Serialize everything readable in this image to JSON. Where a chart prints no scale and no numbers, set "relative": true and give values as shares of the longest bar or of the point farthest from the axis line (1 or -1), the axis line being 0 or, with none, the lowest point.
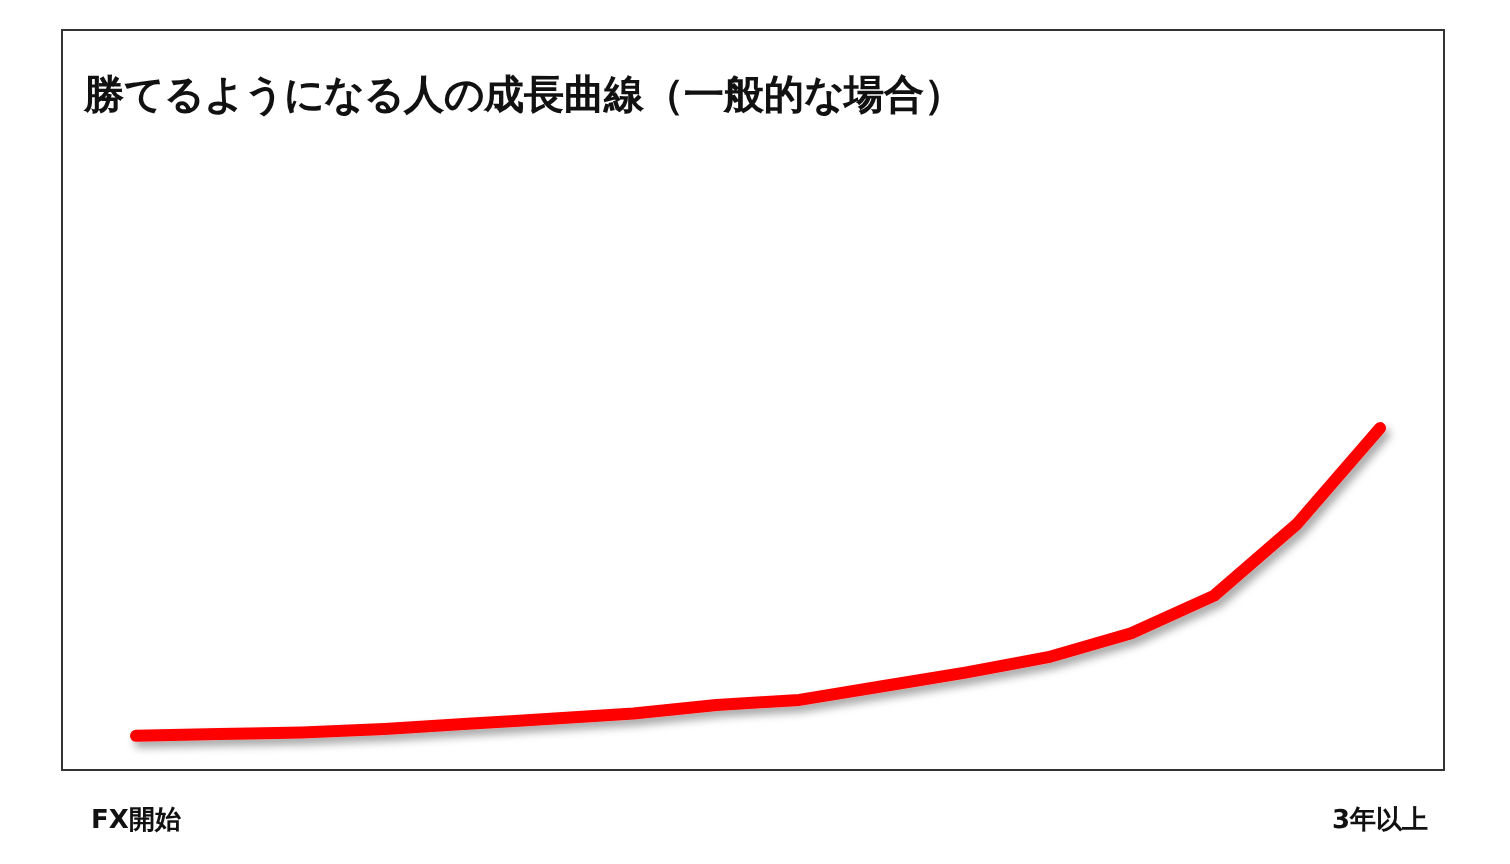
{
  "chart_data": {
    "type": "line",
    "title": "勝てるようになる人の成長曲線（一般的な場合）",
    "relative": true,
    "categories": [
      "FX開始",
      null,
      null,
      null,
      null,
      null,
      null,
      null,
      null,
      null,
      null,
      null,
      null,
      null,
      null,
      "3年以上"
    ],
    "series": [
      {
        "color": "#ff0000",
        "values": [
          0.1,
          0.105,
          0.11,
          0.12,
          0.135,
          0.15,
          0.165,
          0.19,
          0.205,
          0.245,
          0.285,
          0.33,
          0.4,
          0.51,
          0.72,
          1.0
        ]
      }
    ],
    "marker": "none",
    "line_style": "solid"
  }
}
